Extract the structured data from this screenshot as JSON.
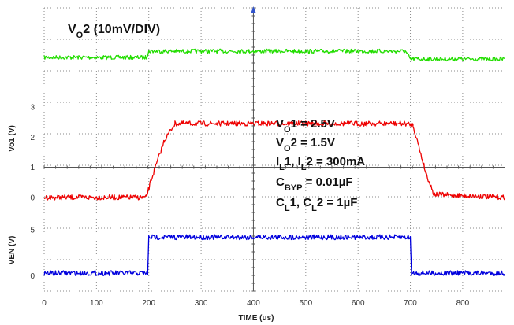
{
  "chart_data": {
    "type": "line",
    "xlabel": "TIME (us)",
    "xlim": [
      0,
      880
    ],
    "x_ticks": [
      0,
      100,
      200,
      300,
      400,
      500,
      600,
      700,
      800
    ],
    "panels": {
      "vo2": {
        "title_main": "V",
        "title_sub": "O",
        "title_rest": "2 (10mV/DIV)",
        "series": [
          {
            "color": "#22dd00",
            "x": [
              0,
              195,
              200,
              690,
              700,
              880
            ],
            "y": [
              3.72,
              3.72,
              3.8,
              3.8,
              3.7,
              3.7
            ]
          }
        ]
      },
      "vo1": {
        "ylabel": "Vo1 (V)",
        "y_ticks": [
          0,
          1,
          2,
          3
        ],
        "ylim": [
          -0.5,
          4.2
        ],
        "series": [
          {
            "color": "#ee0000",
            "x": [
              0,
              195,
              205,
              230,
              250,
              690,
              705,
              730,
              745,
              880
            ],
            "y": [
              0,
              0,
              0.6,
              1.9,
              2.45,
              2.45,
              2.4,
              0.8,
              0.1,
              0
            ]
          }
        ]
      },
      "ven": {
        "ylabel": "VEN (V)",
        "y_ticks": [
          0,
          5
        ],
        "ylim": [
          -0.8,
          5.6
        ],
        "series": [
          {
            "color": "#0000dd",
            "x": [
              0,
              198,
              200,
              700,
              702,
              880
            ],
            "y": [
              0.3,
              0.3,
              4.2,
              4.2,
              0.3,
              0.3
            ]
          }
        ]
      }
    },
    "annotations": [
      {
        "main": "V",
        "sub": "O",
        "rest": "1 = 2.5V"
      },
      {
        "main": "V",
        "sub": "O",
        "rest": "2 = 1.5V"
      },
      {
        "main": "I",
        "sub": "L",
        "rest": "1, I",
        "sub2": "L",
        "rest2": "2 = 300mA"
      },
      {
        "main": "C",
        "sub": "BYP",
        "rest": " = 0.01µF"
      },
      {
        "main": "C",
        "sub": "L",
        "rest": "1, C",
        "sub2": "L",
        "rest2": "2 = 1µF"
      }
    ]
  }
}
